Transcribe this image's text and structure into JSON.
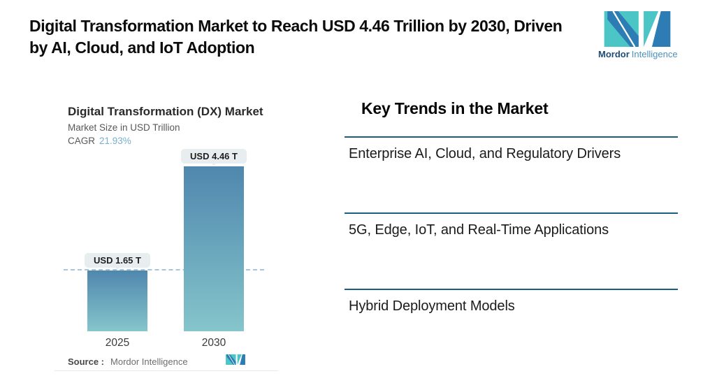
{
  "header": {
    "title": "Digital Transformation Market to Reach USD 4.46 Trillion by 2030, Driven by AI, Cloud, and IoT Adoption",
    "logo_bold": "Mordor",
    "logo_light": "Intelligence"
  },
  "chart_data": {
    "type": "bar",
    "title": "Digital Transformation (DX) Market",
    "subtitle": "Market Size in USD Trillion",
    "cagr_label": "CAGR",
    "cagr_value": "21.93%",
    "categories": [
      "2025",
      "2030"
    ],
    "values": [
      1.65,
      4.46
    ],
    "bar_labels": [
      "USD 1.65 T",
      "USD 4.46 T"
    ],
    "unit": "USD Trillion",
    "ylim": [
      0,
      5
    ],
    "reference_line_y": 1.65,
    "grid": "off",
    "legend": "none",
    "source_label": "Source :",
    "source_value": "Mordor Intelligence"
  },
  "trends": {
    "heading": "Key Trends in the Market",
    "items": [
      "Enterprise AI, Cloud, and Regulatory Drivers",
      "5G, Edge, IoT, and Real-Time Applications",
      "Hybrid Deployment Models"
    ]
  },
  "colors": {
    "separator": "#1a5f80",
    "bar_top": "#4f87ae",
    "bar_bottom": "#85c5cb",
    "dashed_line": "#a8c6db",
    "pill_bg": "#e8eef0",
    "cagr_value": "#79afcd",
    "brand_teal": "#4cc5c7",
    "brand_blue": "#2e7cb4",
    "brand_dark": "#1c4d77",
    "brand_light_text": "#4a90bd"
  }
}
